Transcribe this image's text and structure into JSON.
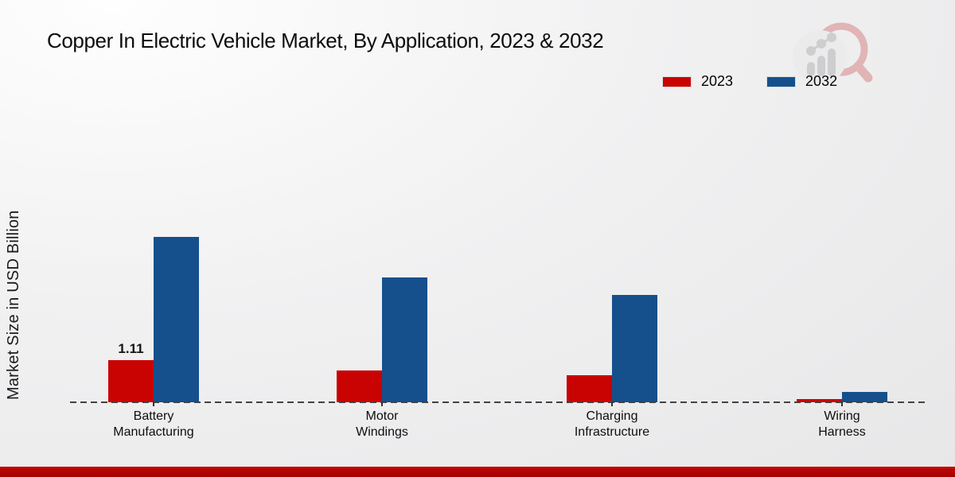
{
  "title": "Copper In Electric Vehicle Market, By Application, 2023 & 2032",
  "y_axis_label": "Market Size in USD Billion",
  "legend": {
    "position": "top-right",
    "items": [
      {
        "label": "2023",
        "color": "#c90202"
      },
      {
        "label": "2032",
        "color": "#15508c"
      }
    ]
  },
  "colors": {
    "series_2023": "#c90202",
    "series_2032": "#15508c",
    "footer_strip": "#b80303",
    "axis_dash": "#424242",
    "background": "#ececed"
  },
  "watermark": "market-research-logo",
  "chart_data": {
    "type": "bar",
    "title": "Copper In Electric Vehicle Market, By Application, 2023 & 2032",
    "xlabel": "",
    "ylabel": "Market Size in USD Billion",
    "categories": [
      "Battery Manufacturing",
      "Motor Windings",
      "Charging Infrastructure",
      "Wiring Harness"
    ],
    "series": [
      {
        "name": "2023",
        "color": "#c90202",
        "values": [
          1.11,
          0.84,
          0.71,
          0.09
        ]
      },
      {
        "name": "2032",
        "color": "#15508c",
        "values": [
          4.37,
          3.29,
          2.83,
          0.27
        ]
      }
    ],
    "data_labels": [
      {
        "series": "2023",
        "category": "Battery Manufacturing",
        "text": "1.11"
      }
    ],
    "ylim": [
      0,
      4.6
    ],
    "grid": false,
    "y_axis_ticks_visible": false,
    "baseline_style": "dashed",
    "legend_position": "top-right"
  }
}
